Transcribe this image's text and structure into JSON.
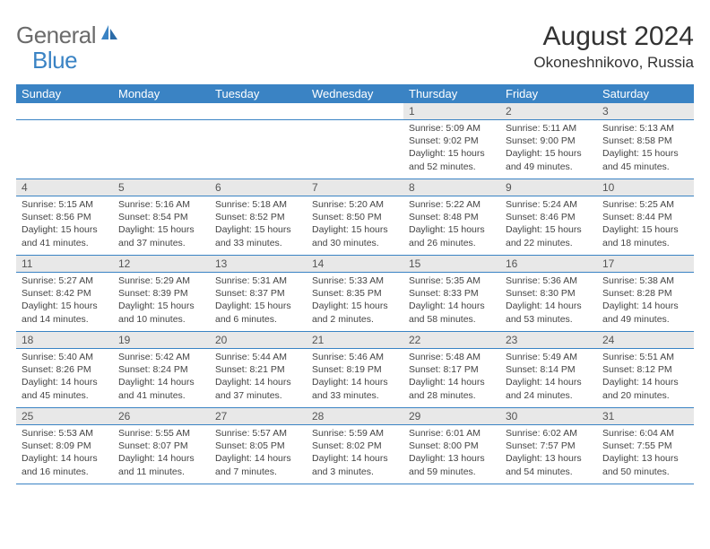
{
  "logo": {
    "text1": "General",
    "text2": "Blue"
  },
  "title": "August 2024",
  "location": "Okoneshnikovo, Russia",
  "colors": {
    "header_bg": "#3a83c4",
    "daynum_bg": "#e8e8e8",
    "text": "#444444",
    "title": "#333333",
    "logo_gray": "#6b6b6b",
    "logo_blue": "#3a83c4"
  },
  "daynames": [
    "Sunday",
    "Monday",
    "Tuesday",
    "Wednesday",
    "Thursday",
    "Friday",
    "Saturday"
  ],
  "weeks": [
    [
      null,
      null,
      null,
      null,
      {
        "n": "1",
        "sr": "5:09 AM",
        "ss": "9:02 PM",
        "dl": "15 hours and 52 minutes."
      },
      {
        "n": "2",
        "sr": "5:11 AM",
        "ss": "9:00 PM",
        "dl": "15 hours and 49 minutes."
      },
      {
        "n": "3",
        "sr": "5:13 AM",
        "ss": "8:58 PM",
        "dl": "15 hours and 45 minutes."
      }
    ],
    [
      {
        "n": "4",
        "sr": "5:15 AM",
        "ss": "8:56 PM",
        "dl": "15 hours and 41 minutes."
      },
      {
        "n": "5",
        "sr": "5:16 AM",
        "ss": "8:54 PM",
        "dl": "15 hours and 37 minutes."
      },
      {
        "n": "6",
        "sr": "5:18 AM",
        "ss": "8:52 PM",
        "dl": "15 hours and 33 minutes."
      },
      {
        "n": "7",
        "sr": "5:20 AM",
        "ss": "8:50 PM",
        "dl": "15 hours and 30 minutes."
      },
      {
        "n": "8",
        "sr": "5:22 AM",
        "ss": "8:48 PM",
        "dl": "15 hours and 26 minutes."
      },
      {
        "n": "9",
        "sr": "5:24 AM",
        "ss": "8:46 PM",
        "dl": "15 hours and 22 minutes."
      },
      {
        "n": "10",
        "sr": "5:25 AM",
        "ss": "8:44 PM",
        "dl": "15 hours and 18 minutes."
      }
    ],
    [
      {
        "n": "11",
        "sr": "5:27 AM",
        "ss": "8:42 PM",
        "dl": "15 hours and 14 minutes."
      },
      {
        "n": "12",
        "sr": "5:29 AM",
        "ss": "8:39 PM",
        "dl": "15 hours and 10 minutes."
      },
      {
        "n": "13",
        "sr": "5:31 AM",
        "ss": "8:37 PM",
        "dl": "15 hours and 6 minutes."
      },
      {
        "n": "14",
        "sr": "5:33 AM",
        "ss": "8:35 PM",
        "dl": "15 hours and 2 minutes."
      },
      {
        "n": "15",
        "sr": "5:35 AM",
        "ss": "8:33 PM",
        "dl": "14 hours and 58 minutes."
      },
      {
        "n": "16",
        "sr": "5:36 AM",
        "ss": "8:30 PM",
        "dl": "14 hours and 53 minutes."
      },
      {
        "n": "17",
        "sr": "5:38 AM",
        "ss": "8:28 PM",
        "dl": "14 hours and 49 minutes."
      }
    ],
    [
      {
        "n": "18",
        "sr": "5:40 AM",
        "ss": "8:26 PM",
        "dl": "14 hours and 45 minutes."
      },
      {
        "n": "19",
        "sr": "5:42 AM",
        "ss": "8:24 PM",
        "dl": "14 hours and 41 minutes."
      },
      {
        "n": "20",
        "sr": "5:44 AM",
        "ss": "8:21 PM",
        "dl": "14 hours and 37 minutes."
      },
      {
        "n": "21",
        "sr": "5:46 AM",
        "ss": "8:19 PM",
        "dl": "14 hours and 33 minutes."
      },
      {
        "n": "22",
        "sr": "5:48 AM",
        "ss": "8:17 PM",
        "dl": "14 hours and 28 minutes."
      },
      {
        "n": "23",
        "sr": "5:49 AM",
        "ss": "8:14 PM",
        "dl": "14 hours and 24 minutes."
      },
      {
        "n": "24",
        "sr": "5:51 AM",
        "ss": "8:12 PM",
        "dl": "14 hours and 20 minutes."
      }
    ],
    [
      {
        "n": "25",
        "sr": "5:53 AM",
        "ss": "8:09 PM",
        "dl": "14 hours and 16 minutes."
      },
      {
        "n": "26",
        "sr": "5:55 AM",
        "ss": "8:07 PM",
        "dl": "14 hours and 11 minutes."
      },
      {
        "n": "27",
        "sr": "5:57 AM",
        "ss": "8:05 PM",
        "dl": "14 hours and 7 minutes."
      },
      {
        "n": "28",
        "sr": "5:59 AM",
        "ss": "8:02 PM",
        "dl": "14 hours and 3 minutes."
      },
      {
        "n": "29",
        "sr": "6:01 AM",
        "ss": "8:00 PM",
        "dl": "13 hours and 59 minutes."
      },
      {
        "n": "30",
        "sr": "6:02 AM",
        "ss": "7:57 PM",
        "dl": "13 hours and 54 minutes."
      },
      {
        "n": "31",
        "sr": "6:04 AM",
        "ss": "7:55 PM",
        "dl": "13 hours and 50 minutes."
      }
    ]
  ],
  "labels": {
    "sunrise": "Sunrise: ",
    "sunset": "Sunset: ",
    "daylight": "Daylight: "
  }
}
